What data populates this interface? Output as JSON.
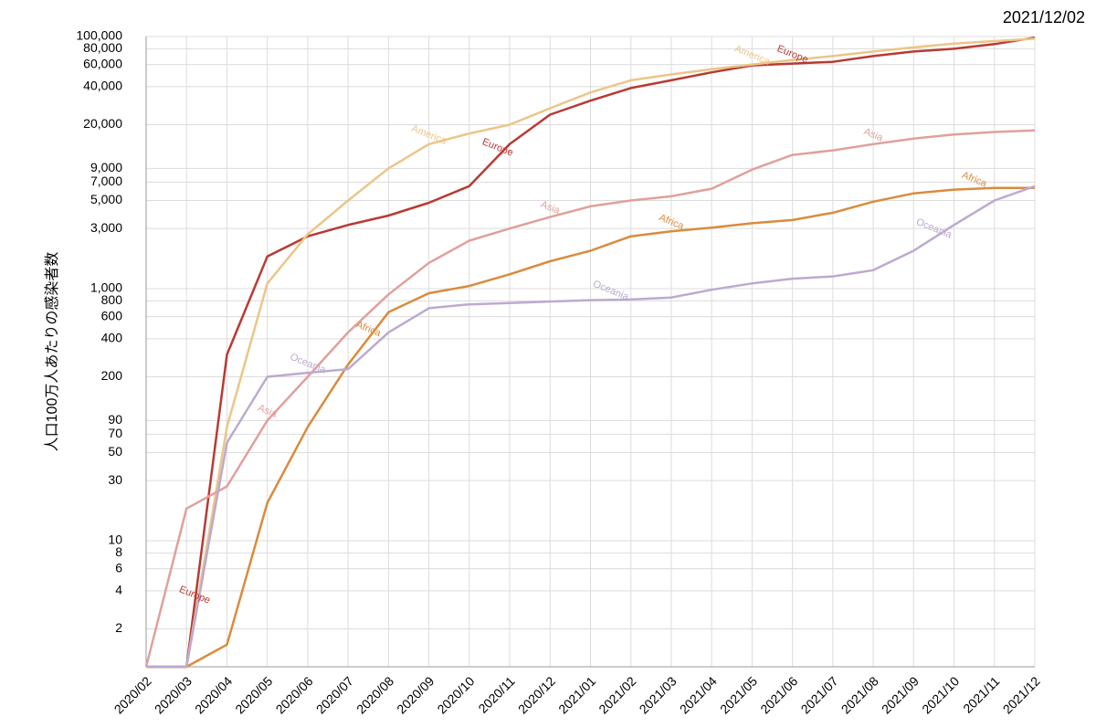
{
  "chart_data": {
    "type": "line",
    "date": "2021/12/02",
    "y_axis_label": "人口100万人あたりの感染者数",
    "log_scale": true,
    "grid": true,
    "categories": [
      "2020/02",
      "2020/03",
      "2020/04",
      "2020/05",
      "2020/06",
      "2020/07",
      "2020/08",
      "2020/09",
      "2020/10",
      "2020/11",
      "2020/12",
      "2021/01",
      "2021/02",
      "2021/03",
      "2021/04",
      "2021/05",
      "2021/06",
      "2021/07",
      "2021/08",
      "2021/09",
      "2021/10",
      "2021/11",
      "2021/12"
    ],
    "ylim": [
      1,
      100000
    ],
    "yticks": [
      2,
      4,
      6,
      8,
      10,
      30,
      50,
      70,
      90,
      200,
      400,
      600,
      800,
      {
        "value": 1000,
        "label": "1,000"
      },
      {
        "value": 3000,
        "label": "3,000"
      },
      {
        "value": 5000,
        "label": "5,000"
      },
      {
        "value": 7000,
        "label": "7,000"
      },
      {
        "value": 9000,
        "label": "9,000"
      },
      {
        "value": 20000,
        "label": "20,000"
      },
      {
        "value": 40000,
        "label": "40,000"
      },
      {
        "value": 60000,
        "label": "60,000"
      },
      {
        "value": 80000,
        "label": "80,000"
      },
      {
        "value": 100000,
        "label": "100,000"
      }
    ],
    "series": [
      {
        "name": "Europe",
        "color": "#b83a32",
        "values": [
          1,
          1,
          300,
          1800,
          2600,
          3200,
          3800,
          4800,
          6500,
          14000,
          24000,
          31000,
          39000,
          45000,
          52000,
          59000,
          61000,
          63000,
          70000,
          76000,
          80000,
          87000,
          98000
        ]
      },
      {
        "name": "America",
        "color": "#ecc587",
        "values": [
          1,
          1,
          80,
          1100,
          2700,
          5000,
          9000,
          14000,
          17000,
          20000,
          27000,
          36000,
          45000,
          50000,
          55000,
          60000,
          65000,
          70000,
          76000,
          82000,
          88000,
          92000,
          96000
        ]
      },
      {
        "name": "Asia",
        "color": "#e0a09c",
        "values": [
          1,
          18,
          27,
          90,
          200,
          450,
          900,
          1600,
          2400,
          3000,
          3700,
          4500,
          5000,
          5400,
          6200,
          8800,
          11500,
          12500,
          14000,
          15500,
          16700,
          17500,
          18000
        ]
      },
      {
        "name": "Africa",
        "color": "#da8b3c",
        "values": [
          1,
          1,
          1.5,
          20,
          80,
          250,
          650,
          920,
          1050,
          1300,
          1650,
          2000,
          2600,
          2850,
          3050,
          3300,
          3500,
          4000,
          4900,
          5700,
          6100,
          6300,
          6300
        ]
      },
      {
        "name": "Oceania",
        "color": "#bcaad0",
        "values": [
          1,
          1,
          60,
          200,
          215,
          230,
          450,
          700,
          750,
          770,
          790,
          810,
          820,
          850,
          980,
          1100,
          1200,
          1250,
          1400,
          2000,
          3200,
          5000,
          6500
        ]
      }
    ]
  }
}
